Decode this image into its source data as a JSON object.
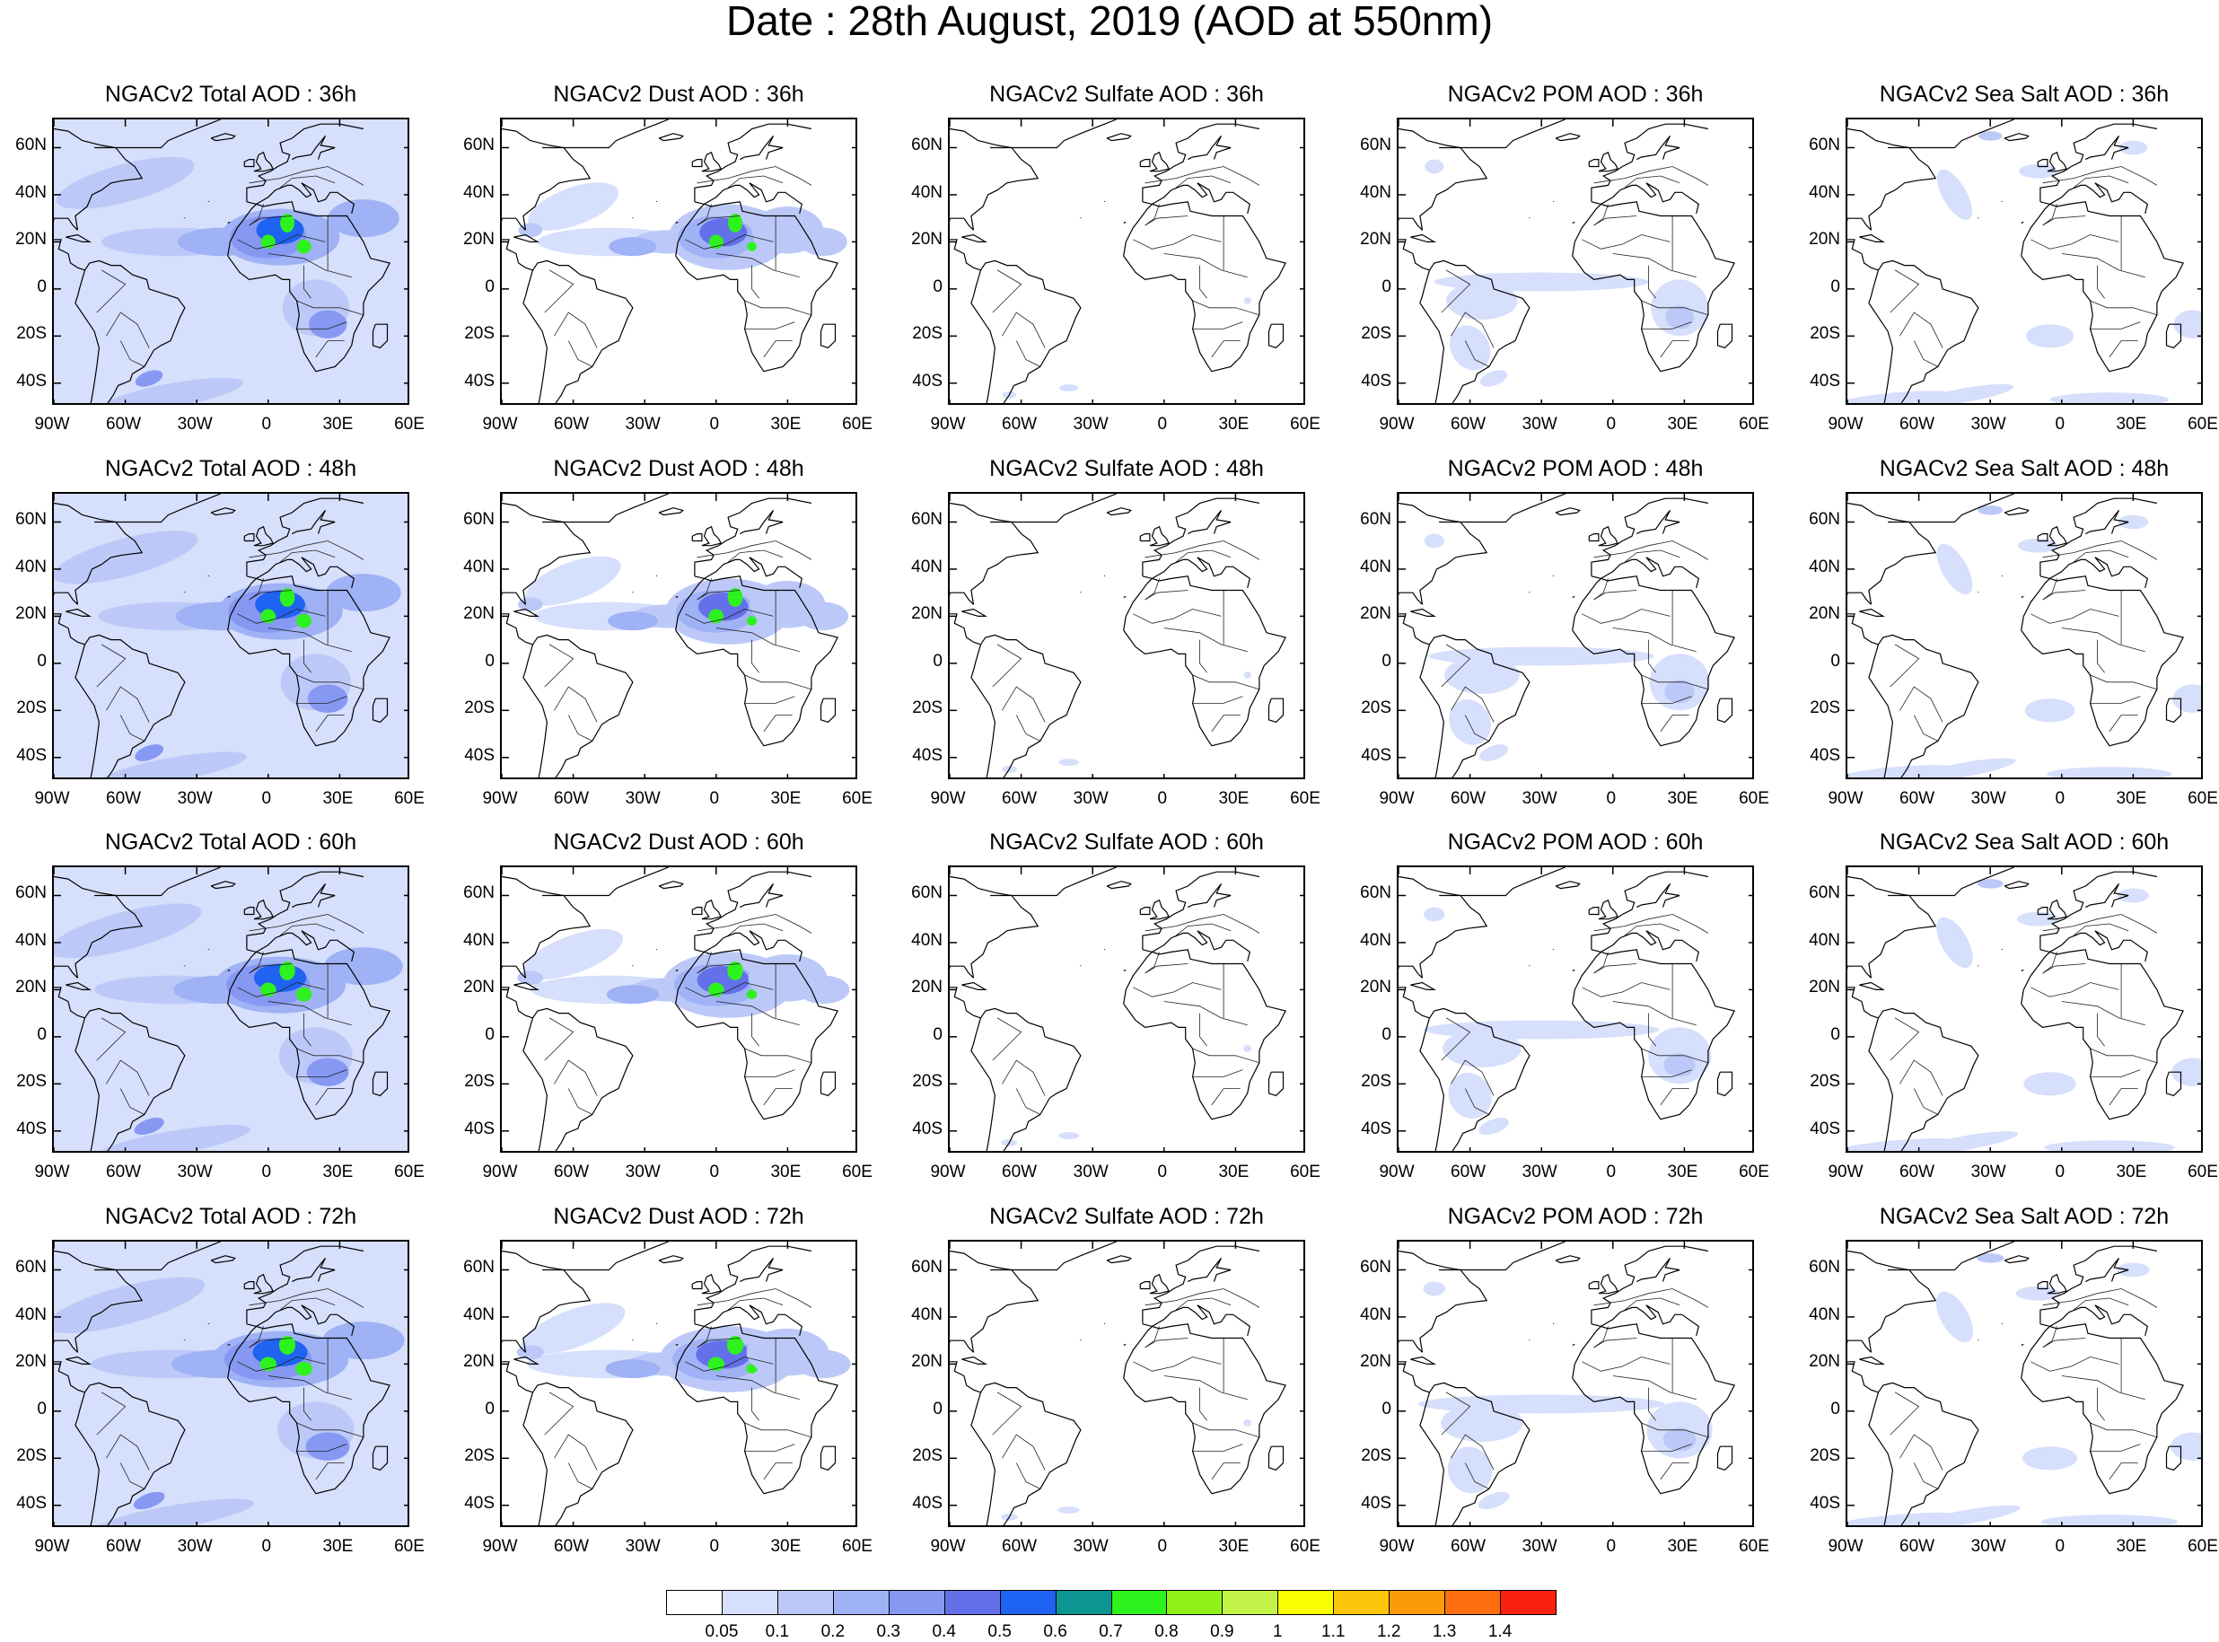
{
  "figure": {
    "title": "Date : 28th August, 2019 (AOD at 550nm)"
  },
  "lat_labels": [
    "60N",
    "40N",
    "20N",
    "0",
    "20S",
    "40S"
  ],
  "lon_labels": [
    "90W",
    "60W",
    "30W",
    "0",
    "30E",
    "60E"
  ],
  "row_hours": [
    "36h",
    "48h",
    "60h",
    "72h"
  ],
  "panels": [
    {
      "row": 0,
      "col": 0,
      "title": "NGACv2 Total AOD : 36h",
      "type": "total"
    },
    {
      "row": 0,
      "col": 1,
      "title": "NGACv2 Dust AOD : 36h",
      "type": "dust"
    },
    {
      "row": 0,
      "col": 2,
      "title": "NGACv2 Sulfate AOD : 36h",
      "type": "sulfate"
    },
    {
      "row": 0,
      "col": 3,
      "title": "NGACv2 POM AOD : 36h",
      "type": "pom"
    },
    {
      "row": 0,
      "col": 4,
      "title": "NGACv2 Sea Salt AOD : 36h",
      "type": "seasalt"
    },
    {
      "row": 1,
      "col": 0,
      "title": "NGACv2 Total AOD : 48h",
      "type": "total"
    },
    {
      "row": 1,
      "col": 1,
      "title": "NGACv2 Dust AOD : 48h",
      "type": "dust"
    },
    {
      "row": 1,
      "col": 2,
      "title": "NGACv2 Sulfate AOD : 48h",
      "type": "sulfate"
    },
    {
      "row": 1,
      "col": 3,
      "title": "NGACv2 POM AOD : 48h",
      "type": "pom"
    },
    {
      "row": 1,
      "col": 4,
      "title": "NGACv2 Sea Salt AOD : 48h",
      "type": "seasalt"
    },
    {
      "row": 2,
      "col": 0,
      "title": "NGACv2 Total AOD : 60h",
      "type": "total"
    },
    {
      "row": 2,
      "col": 1,
      "title": "NGACv2 Dust AOD : 60h",
      "type": "dust"
    },
    {
      "row": 2,
      "col": 2,
      "title": "NGACv2 Sulfate AOD : 60h",
      "type": "sulfate"
    },
    {
      "row": 2,
      "col": 3,
      "title": "NGACv2 POM AOD : 60h",
      "type": "pom"
    },
    {
      "row": 2,
      "col": 4,
      "title": "NGACv2 Sea Salt AOD : 60h",
      "type": "seasalt"
    },
    {
      "row": 3,
      "col": 0,
      "title": "NGACv2 Total AOD : 72h",
      "type": "total"
    },
    {
      "row": 3,
      "col": 1,
      "title": "NGACv2 Dust AOD : 72h",
      "type": "dust"
    },
    {
      "row": 3,
      "col": 2,
      "title": "NGACv2 Sulfate AOD : 72h",
      "type": "sulfate"
    },
    {
      "row": 3,
      "col": 3,
      "title": "NGACv2 POM AOD : 72h",
      "type": "pom"
    },
    {
      "row": 3,
      "col": 4,
      "title": "NGACv2 Sea Salt  AOD : 72h",
      "type": "seasalt"
    }
  ],
  "colorbar": {
    "levels": [
      "0.05",
      "0.1",
      "0.2",
      "0.3",
      "0.4",
      "0.5",
      "0.6",
      "0.7",
      "0.8",
      "0.9",
      "1",
      "1.1",
      "1.2",
      "1.3",
      "1.4"
    ],
    "colors": [
      "#ffffff",
      "#d6dffb",
      "#bcc9f8",
      "#9fb2f6",
      "#8798f3",
      "#6370ea",
      "#1f63f2",
      "#0c9693",
      "#2ef21e",
      "#8ef21a",
      "#c3f348",
      "#fafe00",
      "#fcc60a",
      "#fc9a0c",
      "#fc6e0e",
      "#fc2010"
    ]
  }
}
